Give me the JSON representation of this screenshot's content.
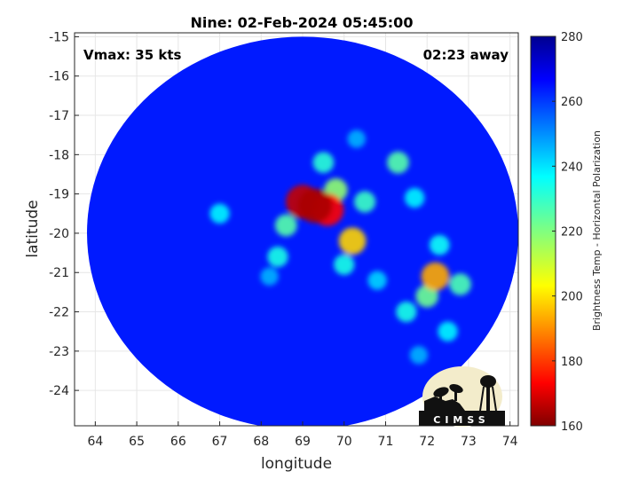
{
  "chart_data": {
    "type": "heatmap",
    "title": "Nine: 02-Feb-2024 05:45:00",
    "xlabel": "longitude",
    "ylabel": "latitude",
    "xlim": [
      63.5,
      74.2
    ],
    "ylim": [
      -24.9,
      -14.9
    ],
    "xticks": [
      64,
      65,
      66,
      67,
      68,
      69,
      70,
      71,
      72,
      73,
      74
    ],
    "yticks": [
      -15,
      -16,
      -17,
      -18,
      -19,
      -20,
      -21,
      -22,
      -23,
      -24
    ],
    "grid": true,
    "annotations": {
      "left": "Vmax: 35 kts",
      "right": "02:23 away"
    },
    "colorbar": {
      "label": "Brightness Temp - Horizontal Polarization",
      "range": [
        160,
        280
      ],
      "ticks": [
        160,
        180,
        200,
        220,
        240,
        260,
        280
      ],
      "colormap": "jet"
    },
    "swath": {
      "center_lon": 69.0,
      "center_lat": -20.0,
      "radius_lon": 5.2,
      "radius_lat": 5.0,
      "background_value": 262
    },
    "features": [
      {
        "lon": 69.3,
        "lat": -19.3,
        "value": 165
      },
      {
        "lon": 69.0,
        "lat": -19.2,
        "value": 168
      },
      {
        "lon": 69.6,
        "lat": -19.4,
        "value": 175
      },
      {
        "lon": 70.2,
        "lat": -20.2,
        "value": 200
      },
      {
        "lon": 72.2,
        "lat": -21.1,
        "value": 195
      },
      {
        "lon": 69.8,
        "lat": -18.9,
        "value": 218
      },
      {
        "lon": 68.6,
        "lat": -19.8,
        "value": 225
      },
      {
        "lon": 70.5,
        "lat": -19.2,
        "value": 228
      },
      {
        "lon": 71.3,
        "lat": -18.2,
        "value": 225
      },
      {
        "lon": 69.5,
        "lat": -18.2,
        "value": 230
      },
      {
        "lon": 68.4,
        "lat": -20.6,
        "value": 232
      },
      {
        "lon": 70.0,
        "lat": -20.8,
        "value": 232
      },
      {
        "lon": 72.0,
        "lat": -21.6,
        "value": 222
      },
      {
        "lon": 72.8,
        "lat": -21.3,
        "value": 226
      },
      {
        "lon": 71.5,
        "lat": -22.0,
        "value": 232
      },
      {
        "lon": 72.3,
        "lat": -20.3,
        "value": 234
      },
      {
        "lon": 71.7,
        "lat": -19.1,
        "value": 236
      },
      {
        "lon": 67.0,
        "lat": -19.5,
        "value": 236
      },
      {
        "lon": 72.5,
        "lat": -22.5,
        "value": 236
      },
      {
        "lon": 70.8,
        "lat": -21.2,
        "value": 240
      },
      {
        "lon": 68.2,
        "lat": -21.1,
        "value": 244
      },
      {
        "lon": 71.8,
        "lat": -23.1,
        "value": 244
      },
      {
        "lon": 70.3,
        "lat": -17.6,
        "value": 244
      }
    ]
  },
  "logo": {
    "text": "CIMSS"
  }
}
